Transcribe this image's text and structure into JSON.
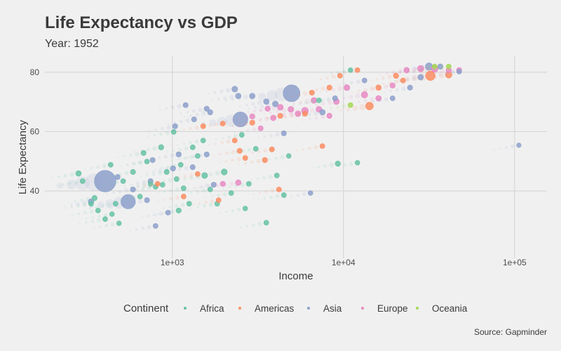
{
  "chart_data": {
    "type": "scatter",
    "title": "Life Expectancy vs GDP",
    "subtitle": "Year: 1952",
    "xlabel": "Income",
    "ylabel": "Life Expectancy",
    "caption": "Source: Gapminder",
    "x_scale": "log10",
    "xlim": [
      180,
      154600
    ],
    "ylim": [
      17.3,
      85.4
    ],
    "x_ticks": [
      {
        "value": 1000,
        "label": "1e+03"
      },
      {
        "value": 10000,
        "label": "1e+04"
      },
      {
        "value": 100000,
        "label": "1e+05"
      }
    ],
    "y_ticks": [
      {
        "value": 40,
        "label": "40"
      },
      {
        "value": 60,
        "label": "60"
      },
      {
        "value": 80,
        "label": "80"
      }
    ],
    "grid": true,
    "legend": {
      "title": "Continent",
      "placement": "bottom"
    },
    "point_fields": [
      "gdp",
      "life_expectancy",
      "relative_size"
    ],
    "series": [
      {
        "name": "Africa",
        "color": "#66c2a5",
        "points": [
          [
            283,
            45.9,
            8
          ],
          [
            299,
            43.3,
            4
          ],
          [
            335,
            35.7,
            4
          ],
          [
            351,
            37.6,
            6
          ],
          [
            368,
            33.4,
            4
          ],
          [
            405,
            30.5,
            4
          ],
          [
            444,
            32.2,
            3
          ],
          [
            488,
            29.1,
            3
          ],
          [
            436,
            48.8,
            4
          ],
          [
            466,
            35.7,
            4
          ],
          [
            516,
            43.3,
            4
          ],
          [
            589,
            46.4,
            5
          ],
          [
            647,
            38.1,
            4
          ],
          [
            679,
            52.8,
            5
          ],
          [
            711,
            49.9,
            4
          ],
          [
            746,
            42.4,
            4
          ],
          [
            798,
            41.4,
            4
          ],
          [
            860,
            54.7,
            6
          ],
          [
            877,
            42.1,
            4
          ],
          [
            927,
            46.4,
            5
          ],
          [
            1019,
            59.9,
            4
          ],
          [
            1059,
            44.0,
            4
          ],
          [
            1119,
            48.8,
            4
          ],
          [
            1164,
            40.9,
            4
          ],
          [
            1089,
            33.4,
            5
          ],
          [
            1254,
            35.7,
            4
          ],
          [
            1315,
            54.7,
            4
          ],
          [
            1406,
            51.8,
            4
          ],
          [
            1514,
            57.0,
            4
          ],
          [
            1545,
            45.2,
            10
          ],
          [
            1664,
            40.5,
            4
          ],
          [
            1829,
            35.7,
            4
          ],
          [
            2010,
            46.4,
            12
          ],
          [
            2208,
            39.3,
            4
          ],
          [
            2546,
            58.9,
            4
          ],
          [
            2798,
            42.4,
            4
          ],
          [
            2667,
            34.1,
            3
          ],
          [
            3074,
            54.2,
            4
          ],
          [
            3540,
            29.3,
            4
          ],
          [
            4080,
            45.2,
            4
          ],
          [
            4484,
            38.6,
            4
          ],
          [
            4789,
            51.8,
            3
          ],
          [
            9270,
            49.2,
            6
          ],
          [
            12070,
            49.5,
            3
          ],
          [
            7190,
            70.5,
            4
          ],
          [
            10990,
            80.7,
            3
          ]
        ]
      },
      {
        "name": "Americas",
        "color": "#fc8d62",
        "points": [
          [
            820,
            42.4,
            4
          ],
          [
            1164,
            38.1,
            4
          ],
          [
            1406,
            45.7,
            4
          ],
          [
            1514,
            61.8,
            4
          ],
          [
            1863,
            36.9,
            4
          ],
          [
            1972,
            62.7,
            4
          ],
          [
            2316,
            57.0,
            4
          ],
          [
            2474,
            53.5,
            5
          ],
          [
            2667,
            51.1,
            4
          ],
          [
            2932,
            63.0,
            5
          ],
          [
            3475,
            50.4,
            6
          ],
          [
            3818,
            54.0,
            5
          ],
          [
            4276,
            65.3,
            5
          ],
          [
            5957,
            66.0,
            5
          ],
          [
            6543,
            73.1,
            5
          ],
          [
            7533,
            55.1,
            4
          ],
          [
            8278,
            74.8,
            5
          ],
          [
            9545,
            78.8,
            4
          ],
          [
            12070,
            80.7,
            4
          ],
          [
            14190,
            68.6,
            30
          ],
          [
            16030,
            74.8,
            8
          ],
          [
            20280,
            78.8,
            6
          ],
          [
            22290,
            77.2,
            5
          ],
          [
            32210,
            78.8,
            60
          ],
          [
            41210,
            79.1,
            15
          ],
          [
            4198,
            40.5,
            4
          ]
        ]
      },
      {
        "name": "Asia",
        "color": "#8da0cb",
        "points": [
          [
            335,
            36.4,
            8
          ],
          [
            405,
            43.3,
            550
          ],
          [
            552,
            36.4,
            200
          ],
          [
            479,
            44.7,
            5
          ],
          [
            589,
            40.5,
            5
          ],
          [
            711,
            36.9,
            5
          ],
          [
            746,
            43.3,
            5
          ],
          [
            767,
            50.4,
            5
          ],
          [
            798,
            28.2,
            4
          ],
          [
            944,
            32.7,
            4
          ],
          [
            1009,
            47.6,
            6
          ],
          [
            1089,
            52.3,
            6
          ],
          [
            1315,
            48.0,
            5
          ],
          [
            1340,
            64.1,
            5
          ],
          [
            1588,
            52.3,
            5
          ],
          [
            1664,
            66.5,
            6
          ],
          [
            1746,
            42.1,
            5
          ],
          [
            2428,
            72.0,
            8
          ],
          [
            2500,
            64.1,
            220
          ],
          [
            2316,
            74.3,
            10
          ],
          [
            2932,
            72.0,
            8
          ],
          [
            3540,
            70.1,
            8
          ],
          [
            4000,
            69.3,
            10
          ],
          [
            4484,
            59.4,
            5
          ],
          [
            4973,
            72.9,
            300
          ],
          [
            6417,
            39.3,
            3
          ],
          [
            7533,
            66.5,
            8
          ],
          [
            8928,
            71.2,
            5
          ],
          [
            13270,
            77.2,
            4
          ],
          [
            19360,
            71.2,
            4
          ],
          [
            24490,
            74.8,
            5
          ],
          [
            28250,
            78.3,
            8
          ],
          [
            31620,
            81.9,
            25
          ],
          [
            36810,
            81.9,
            6
          ],
          [
            47430,
            80.2,
            4
          ],
          [
            105900,
            55.4,
            2
          ],
          [
            1038,
            61.8,
            5
          ],
          [
            1196,
            68.9,
            5
          ],
          [
            1588,
            67.7,
            5
          ]
        ]
      },
      {
        "name": "Europe",
        "color": "#e78ac3",
        "points": [
          [
            1972,
            42.4,
            5
          ],
          [
            2428,
            42.8,
            8
          ],
          [
            2932,
            65.1,
            6
          ],
          [
            3282,
            61.1,
            5
          ],
          [
            3606,
            67.7,
            6
          ],
          [
            3890,
            64.6,
            8
          ],
          [
            4276,
            68.2,
            10
          ],
          [
            4928,
            67.5,
            10
          ],
          [
            5418,
            66.0,
            8
          ],
          [
            5957,
            67.0,
            20
          ],
          [
            6725,
            70.5,
            10
          ],
          [
            7190,
            67.5,
            10
          ],
          [
            8278,
            65.3,
            6
          ],
          [
            9095,
            70.1,
            10
          ],
          [
            10470,
            74.8,
            10
          ],
          [
            13270,
            72.4,
            15
          ],
          [
            16030,
            71.2,
            8
          ],
          [
            19360,
            75.5,
            6
          ],
          [
            23380,
            80.7,
            8
          ],
          [
            28250,
            81.2,
            15
          ],
          [
            34120,
            81.2,
            20
          ],
          [
            41210,
            80.7,
            6
          ],
          [
            47430,
            80.7,
            5
          ]
        ]
      },
      {
        "name": "Oceania",
        "color": "#a6d854",
        "points": [
          [
            34120,
            81.9,
            4
          ],
          [
            41210,
            81.9,
            4
          ],
          [
            10990,
            68.9,
            4
          ]
        ]
      }
    ]
  }
}
